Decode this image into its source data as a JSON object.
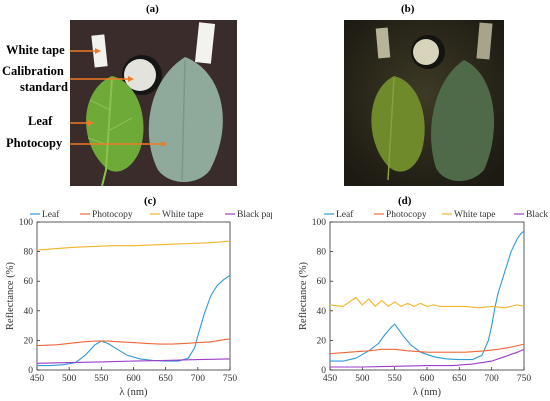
{
  "panels": {
    "a": "(a)",
    "b": "(b)",
    "c": "(c)",
    "d": "(d)"
  },
  "photo_a": {
    "annotations": {
      "white_tape": "White tape",
      "calibration_1": "Calibration",
      "calibration_2": "standard",
      "leaf": "Leaf",
      "photocopy": "Photocopy"
    },
    "colors": {
      "background": "#3a2c2a",
      "leaf": "#6eaa38",
      "photocopy": "#8fa99a",
      "tape": "#f2f2ee",
      "arrow": "#f07a28"
    }
  },
  "photo_b": {
    "colors": {
      "background": "#2c2a1e",
      "leaf": "#6e8a2a",
      "photocopy": "#4f6a48"
    }
  },
  "chart_data": [
    {
      "id": "c",
      "type": "line",
      "xlabel": "λ (nm)",
      "ylabel": "Reflectance (%)",
      "xlim": [
        450,
        750
      ],
      "ylim": [
        0,
        100
      ],
      "xticks": [
        450,
        500,
        550,
        600,
        650,
        700,
        750
      ],
      "yticks": [
        0,
        20,
        40,
        60,
        80,
        100
      ],
      "legend_position": "top",
      "series": [
        {
          "name": "Leaf",
          "color": "#2e9ad6",
          "x": [
            450,
            470,
            490,
            510,
            525,
            540,
            550,
            560,
            575,
            590,
            610,
            630,
            650,
            670,
            685,
            695,
            700,
            710,
            720,
            730,
            740,
            750
          ],
          "y": [
            3,
            3,
            3.5,
            5,
            10,
            17,
            19.5,
            18,
            14,
            10,
            7.5,
            6.5,
            6,
            6,
            8,
            15,
            23,
            38,
            50,
            57,
            61,
            64
          ]
        },
        {
          "name": "Photocopy",
          "color": "#f0663c",
          "x": [
            450,
            480,
            500,
            520,
            540,
            560,
            580,
            600,
            620,
            640,
            660,
            680,
            700,
            720,
            740,
            750
          ],
          "y": [
            16.5,
            17,
            18,
            19,
            19.5,
            19.5,
            19,
            18.5,
            18,
            17.5,
            17.5,
            18,
            18.5,
            19,
            20.5,
            21
          ]
        },
        {
          "name": "White tape",
          "color": "#f0b428",
          "x": [
            450,
            480,
            510,
            540,
            570,
            600,
            630,
            660,
            690,
            720,
            750
          ],
          "y": [
            81,
            82,
            83,
            83.5,
            84,
            84,
            84.5,
            85,
            85.5,
            86,
            87
          ]
        },
        {
          "name": "Black paper",
          "color": "#9c3ec8",
          "x": [
            450,
            500,
            550,
            600,
            650,
            700,
            750
          ],
          "y": [
            4.5,
            5,
            5.5,
            6,
            6.5,
            7,
            7.5
          ]
        }
      ]
    },
    {
      "id": "d",
      "type": "line",
      "xlabel": "λ (nm)",
      "ylabel": "Reflectance (%)",
      "xlim": [
        450,
        750
      ],
      "ylim": [
        0,
        100
      ],
      "xticks": [
        450,
        500,
        550,
        600,
        650,
        700,
        750
      ],
      "yticks": [
        0,
        20,
        40,
        60,
        80,
        100
      ],
      "legend_position": "top",
      "series": [
        {
          "name": "Leaf",
          "color": "#2e9ad6",
          "x": [
            450,
            470,
            490,
            510,
            525,
            535,
            545,
            550,
            555,
            565,
            575,
            590,
            610,
            630,
            650,
            670,
            685,
            695,
            700,
            705,
            710,
            720,
            730,
            740,
            745,
            750
          ],
          "y": [
            6,
            6,
            8,
            13,
            18,
            24,
            29,
            31,
            28,
            22,
            17,
            12,
            9,
            7.5,
            7,
            7,
            10,
            20,
            30,
            42,
            52,
            66,
            80,
            89,
            92,
            94
          ]
        },
        {
          "name": "Photocopy",
          "color": "#f0663c",
          "x": [
            450,
            480,
            510,
            530,
            550,
            570,
            600,
            630,
            660,
            690,
            710,
            730,
            750
          ],
          "y": [
            11,
            12,
            13,
            14,
            14,
            13,
            12,
            12,
            12,
            13,
            14,
            15.5,
            17.5
          ]
        },
        {
          "name": "White tape",
          "color": "#f0b428",
          "x": [
            450,
            470,
            490,
            500,
            510,
            520,
            530,
            540,
            550,
            560,
            570,
            580,
            590,
            600,
            610,
            620,
            640,
            660,
            680,
            700,
            720,
            740,
            750
          ],
          "y": [
            44,
            43,
            49,
            44,
            48,
            43,
            47,
            43,
            46,
            43,
            45,
            43,
            45,
            43,
            44,
            43,
            43,
            43,
            42,
            43,
            42,
            44,
            43
          ]
        },
        {
          "name": "Black paper",
          "color": "#9c3ec8",
          "x": [
            450,
            500,
            550,
            600,
            640,
            670,
            700,
            720,
            740,
            750
          ],
          "y": [
            2,
            2,
            2.5,
            3,
            3,
            4,
            6,
            9,
            12,
            14
          ]
        }
      ]
    }
  ]
}
